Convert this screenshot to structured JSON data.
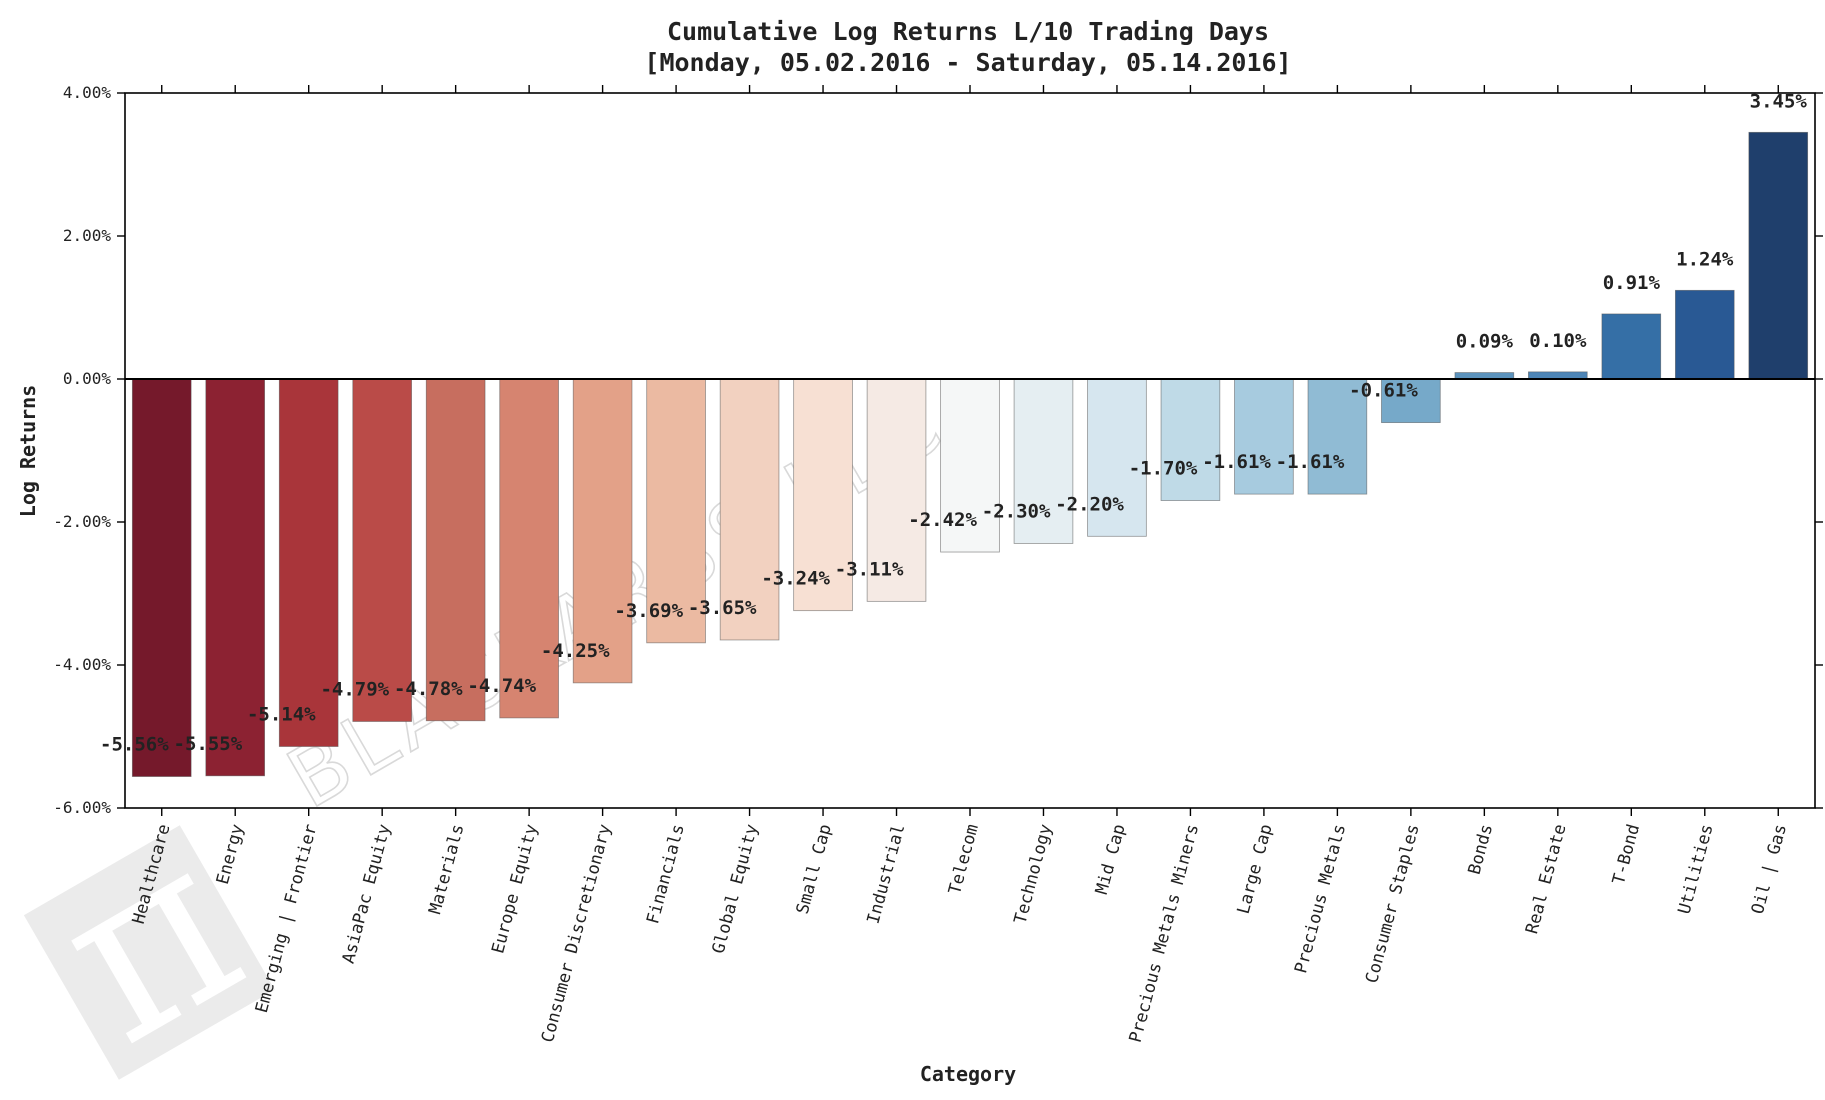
{
  "chart_data": {
    "type": "bar",
    "title": "Cumulative Log Returns L/10 Trading Days",
    "subtitle": "[Monday, 05.02.2016 - Saturday, 05.14.2016]",
    "xlabel": "Category",
    "ylabel": "Log Returns",
    "ylim": [
      -6.0,
      4.0
    ],
    "yticks": [
      4.0,
      2.0,
      0.0,
      -2.0,
      -4.0,
      -6.0
    ],
    "ytick_labels": [
      "4.00%",
      "2.00%",
      "0.00%",
      "-2.00%",
      "-4.00%",
      "-6.00%"
    ],
    "categories": [
      "Healthcare",
      "Energy",
      "Emerging | Frontier",
      "AsiaPac Equity",
      "Materials",
      "Europe Equity",
      "Consumer Discretionary",
      "Financials",
      "Global Equity",
      "Small Cap",
      "Industrial",
      "Telecom",
      "Technology",
      "Mid Cap",
      "Precious Metals Miners",
      "Large Cap",
      "Precious Metals",
      "Consumer Staples",
      "Bonds",
      "Real Estate",
      "T-Bond",
      "Utilities",
      "Oil | Gas"
    ],
    "values": [
      -5.56,
      -5.55,
      -5.14,
      -4.79,
      -4.78,
      -4.74,
      -4.25,
      -3.69,
      -3.65,
      -3.24,
      -3.11,
      -2.42,
      -2.3,
      -2.2,
      -1.7,
      -1.61,
      -1.61,
      -0.61,
      0.09,
      0.1,
      0.91,
      1.24,
      3.45
    ],
    "data_labels": [
      "-5.56%",
      "-5.55%",
      "-5.14%",
      "-4.79%",
      "-4.78%",
      "-4.74%",
      "-4.25%",
      "-3.69%",
      "-3.65%",
      "-3.24%",
      "-3.11%",
      "-2.42%",
      "-2.30%",
      "-2.20%",
      "-1.70%",
      "-1.61%",
      "-1.61%",
      "-0.61%",
      "0.09%",
      "0.10%",
      "0.91%",
      "1.24%",
      "3.45%"
    ],
    "colors": [
      "#75192b",
      "#8c2232",
      "#a9353a",
      "#ba4b48",
      "#c76e5f",
      "#d68470",
      "#e3a188",
      "#ebbaa2",
      "#f2d1c0",
      "#f7e0d3",
      "#f5eae4",
      "#f5f7f7",
      "#e5eef2",
      "#d6e6ef",
      "#bfdae7",
      "#a7cbdf",
      "#90bbd4",
      "#76a9c9",
      "#5c93bd",
      "#4d85b6",
      "#356fa6",
      "#295994",
      "#1f3f6c"
    ],
    "grid": false
  },
  "watermark": {
    "text": "BLACKARBS LLC"
  }
}
